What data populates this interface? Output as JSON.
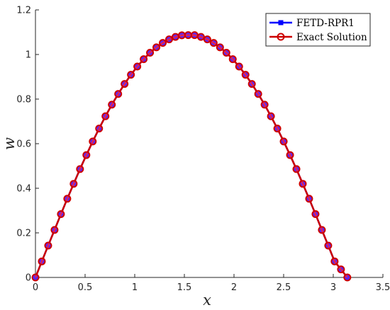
{
  "chart_data": {
    "type": "line",
    "title": "",
    "xlabel": "x",
    "ylabel": "w",
    "xlim": [
      0,
      3.5
    ],
    "ylim": [
      0,
      1.2
    ],
    "xticks": [
      "0",
      "0.5",
      "1",
      "1.5",
      "2",
      "2.5",
      "3",
      "3.5"
    ],
    "yticks": [
      "0",
      "0.2",
      "0.4",
      "0.6",
      "0.8",
      "1",
      "1.2"
    ],
    "grid": false,
    "legend_position": "top-right",
    "series": [
      {
        "name": "FETD-RPR1",
        "color": "#0000ff",
        "marker": "square",
        "x": [
          0,
          0.0641,
          0.1282,
          0.1923,
          0.2565,
          0.3206,
          0.3847,
          0.4488,
          0.5129,
          0.577,
          0.6411,
          0.7053,
          0.7694,
          0.8335,
          0.8976,
          0.9617,
          1.0258,
          1.0899,
          1.1541,
          1.2182,
          1.2823,
          1.3464,
          1.4105,
          1.4746,
          1.5387,
          1.6029,
          1.667,
          1.7311,
          1.7952,
          1.8593,
          1.9234,
          1.9875,
          2.0517,
          2.1158,
          2.1799,
          2.244,
          2.3081,
          2.3722,
          2.4363,
          2.5005,
          2.5646,
          2.6287,
          2.6928,
          2.7569,
          2.821,
          2.8851,
          2.9493,
          3.0134,
          3.0775,
          3.1416
        ],
        "y": [
          0,
          0.072,
          0.143,
          0.213,
          0.284,
          0.353,
          0.42,
          0.486,
          0.549,
          0.61,
          0.668,
          0.723,
          0.775,
          0.823,
          0.868,
          0.909,
          0.946,
          0.979,
          1.008,
          1.032,
          1.052,
          1.068,
          1.079,
          1.086,
          1.087,
          1.087,
          1.079,
          1.068,
          1.052,
          1.032,
          1.008,
          0.979,
          0.946,
          0.909,
          0.868,
          0.823,
          0.775,
          0.723,
          0.668,
          0.61,
          0.549,
          0.486,
          0.42,
          0.353,
          0.284,
          0.213,
          0.143,
          0.072,
          0.036,
          0
        ]
      },
      {
        "name": "Exact Solution",
        "color": "#cc0000",
        "marker": "circle",
        "x": [
          0,
          0.0641,
          0.1282,
          0.1923,
          0.2565,
          0.3206,
          0.3847,
          0.4488,
          0.5129,
          0.577,
          0.6411,
          0.7053,
          0.7694,
          0.8335,
          0.8976,
          0.9617,
          1.0258,
          1.0899,
          1.1541,
          1.2182,
          1.2823,
          1.3464,
          1.4105,
          1.4746,
          1.5387,
          1.6029,
          1.667,
          1.7311,
          1.7952,
          1.8593,
          1.9234,
          1.9875,
          2.0517,
          2.1158,
          2.1799,
          2.244,
          2.3081,
          2.3722,
          2.4363,
          2.5005,
          2.5646,
          2.6287,
          2.6928,
          2.7569,
          2.821,
          2.8851,
          2.9493,
          3.0134,
          3.0775,
          3.1416
        ],
        "y": [
          0,
          0.072,
          0.143,
          0.213,
          0.284,
          0.353,
          0.42,
          0.486,
          0.549,
          0.61,
          0.668,
          0.723,
          0.775,
          0.823,
          0.868,
          0.909,
          0.946,
          0.979,
          1.008,
          1.032,
          1.052,
          1.068,
          1.079,
          1.086,
          1.087,
          1.087,
          1.079,
          1.068,
          1.052,
          1.032,
          1.008,
          0.979,
          0.946,
          0.909,
          0.868,
          0.823,
          0.775,
          0.723,
          0.668,
          0.61,
          0.549,
          0.486,
          0.42,
          0.353,
          0.284,
          0.213,
          0.143,
          0.072,
          0.036,
          0
        ]
      }
    ]
  }
}
